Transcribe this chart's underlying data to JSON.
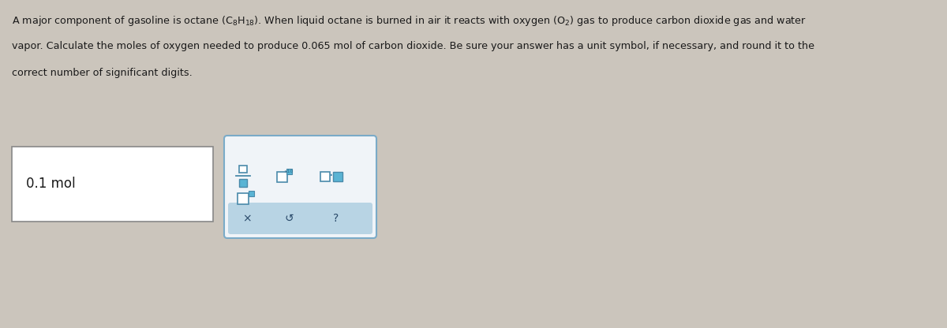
{
  "bg_color": "#cbc5bc",
  "text_color": "#1a1a1a",
  "answer_text": "0.1 mol",
  "answer_box_color": "#ffffff",
  "answer_box_border": "#888888",
  "toolbar_bg_top": "#f0f4f8",
  "toolbar_bg_bottom": "#b8d4e4",
  "toolbar_border": "#7aaBc8",
  "icon_outline": "#4a8aaa",
  "icon_fill": "#5ab4d4",
  "icon_dark": "#2a6a8a",
  "bottom_sym_color": "#2a4a6a",
  "para_line1": "A major component of gasoline is octane ($\\mathregular{(C_8H_{18})}$). When liquid octane is burned in air it reacts with oxygen ($\\mathregular{(O_2)}$) gas to produce carbon dioxide gas and water",
  "para_line2": "vapor. Calculate the moles of oxygen needed to produce 0.065 mol of carbon dioxide. Be sure your answer has a unit symbol, if necessary, and round it to the",
  "para_line3": "correct number of significant digits.",
  "figwidth": 12.0,
  "figheight": 4.16,
  "dpi": 100
}
